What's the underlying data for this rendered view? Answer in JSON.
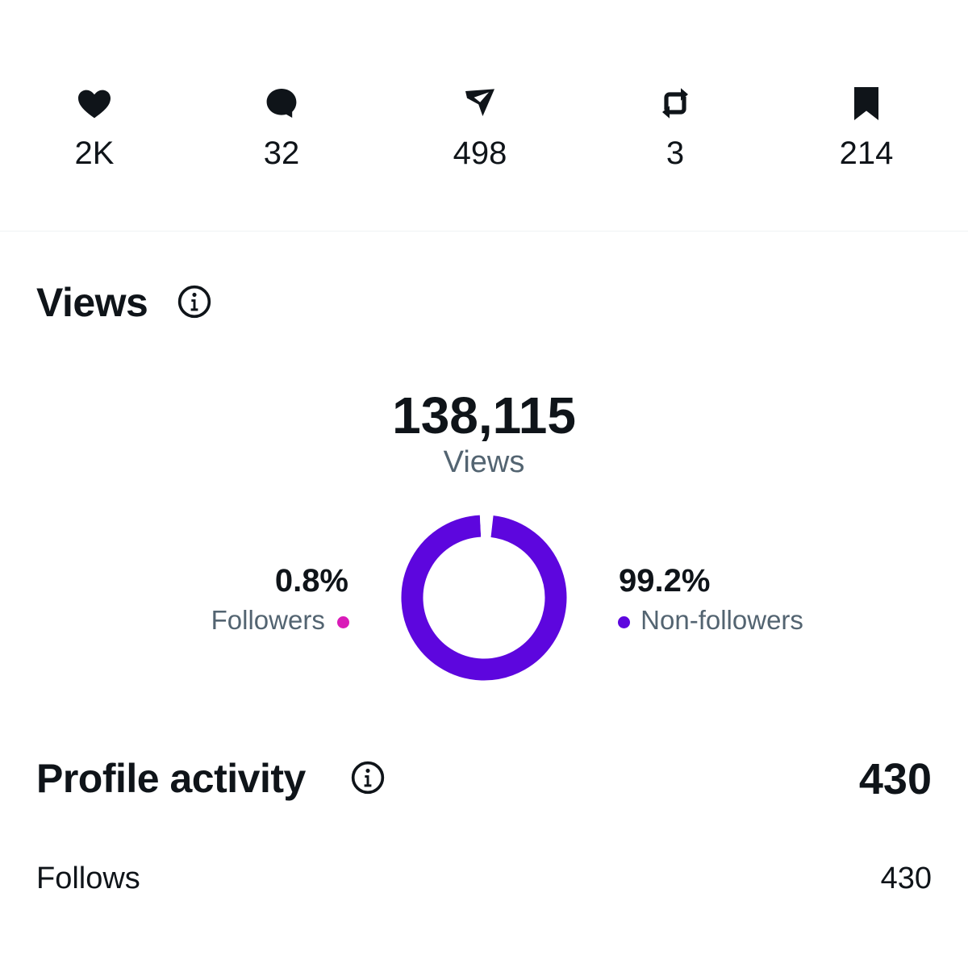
{
  "engagement": {
    "likes": {
      "icon": "heart-icon",
      "value": "2K"
    },
    "replies": {
      "icon": "reply-icon",
      "value": "32"
    },
    "shares": {
      "icon": "share-icon",
      "value": "498"
    },
    "reposts": {
      "icon": "repost-icon",
      "value": "3"
    },
    "bookmarks": {
      "icon": "bookmark-icon",
      "value": "214"
    }
  },
  "views": {
    "title": "Views",
    "total": "138,115",
    "total_label": "Views",
    "followers_pct": "0.8%",
    "followers_label": "Followers",
    "nonfollowers_pct": "99.2%",
    "nonfollowers_label": "Non-followers",
    "followers_fraction": 0.008,
    "nonfollowers_fraction": 0.992,
    "followers_color": "#d91bb8",
    "nonfollowers_color": "#5d06de"
  },
  "profile_activity": {
    "title": "Profile activity",
    "total": "430",
    "rows": [
      {
        "label": "Follows",
        "value": "430"
      }
    ]
  }
}
